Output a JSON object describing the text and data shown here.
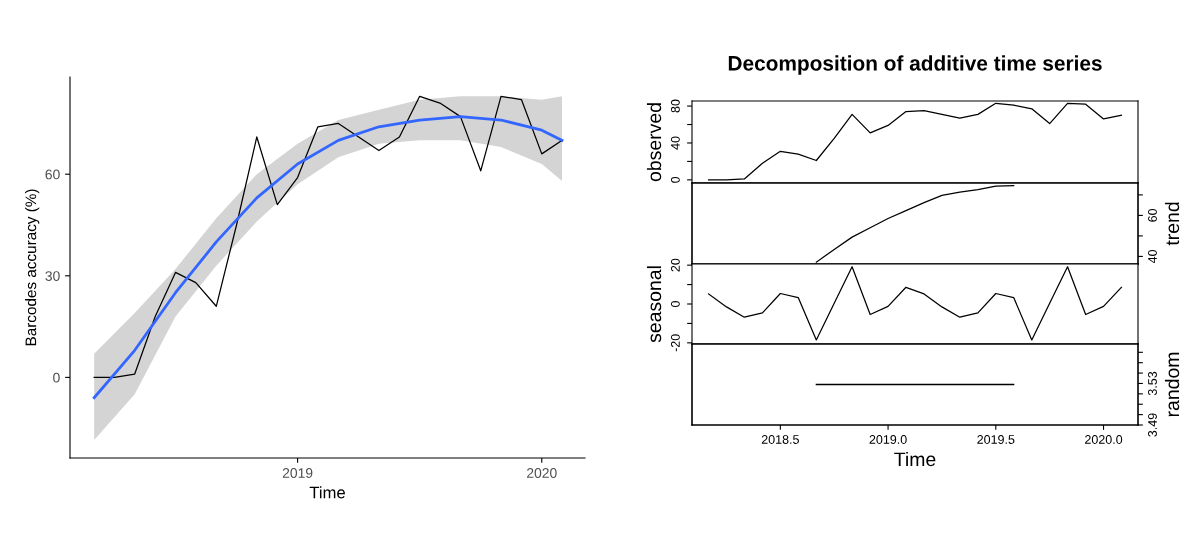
{
  "chart_data": [
    {
      "type": "line",
      "xlabel": "Time",
      "ylabel": "Barcodes accuracy (%)",
      "xlim": [
        2018.068,
        2020.177
      ],
      "ylim": [
        -23.8,
        88.7
      ],
      "xticks": [
        2019,
        2020
      ],
      "yticks": [
        0,
        30,
        60
      ],
      "grid": false,
      "series": [
        {
          "color": "#000000",
          "x": [
            2018.167,
            2018.25,
            2018.333,
            2018.417,
            2018.5,
            2018.583,
            2018.667,
            2018.75,
            2018.833,
            2018.917,
            2019.0,
            2019.083,
            2019.167,
            2019.25,
            2019.333,
            2019.417,
            2019.5,
            2019.583,
            2019.667,
            2019.75,
            2019.833,
            2019.917,
            2020.0,
            2020.083
          ],
          "values": [
            0,
            0,
            1,
            18,
            31,
            28,
            21,
            45,
            71,
            51,
            59,
            74,
            75,
            71,
            67,
            71,
            83,
            81,
            77,
            61,
            83,
            82,
            66,
            70
          ]
        },
        {
          "type": "line",
          "color": "#3366ff",
          "x": [
            2018.167,
            2018.333,
            2018.5,
            2018.667,
            2018.833,
            2019.0,
            2019.167,
            2019.333,
            2019.5,
            2019.667,
            2019.833,
            2020.0,
            2020.083
          ],
          "values": [
            -6,
            8,
            25,
            40,
            53,
            63,
            70,
            74,
            76,
            77,
            76,
            73,
            70
          ],
          "lower": [
            -18.5,
            -5,
            18,
            33,
            46,
            57,
            65,
            69,
            70,
            70,
            68,
            63,
            58
          ],
          "upper": [
            7,
            19,
            32,
            47,
            60,
            69,
            76,
            79,
            82,
            83,
            83,
            82,
            83
          ]
        }
      ]
    },
    {
      "type": "line",
      "title": "Decomposition of additive time series",
      "ylabel": "observed",
      "xlim": [
        2018.09,
        2020.16
      ],
      "ylim": [
        -3.4,
        85.5
      ],
      "yticks": [
        0,
        {
          "value": 20,
          "label": null
        },
        40,
        {
          "value": 60,
          "label": null
        },
        80
      ],
      "tick_labels": "y",
      "series": [
        {
          "color": "#000000",
          "x": [
            2018.167,
            2018.25,
            2018.333,
            2018.417,
            2018.5,
            2018.583,
            2018.667,
            2018.75,
            2018.833,
            2018.917,
            2019.0,
            2019.083,
            2019.167,
            2019.25,
            2019.333,
            2019.417,
            2019.5,
            2019.583,
            2019.667,
            2019.75,
            2019.833,
            2019.917,
            2020.0,
            2020.083
          ],
          "values": [
            0,
            0,
            1,
            18,
            31,
            28,
            21,
            45,
            71,
            51,
            59,
            74,
            75,
            71,
            67,
            71,
            83,
            81,
            77,
            61,
            83,
            82,
            66,
            70
          ]
        }
      ]
    },
    {
      "type": "line",
      "y2label": "trend",
      "xlim": [
        2018.09,
        2020.16
      ],
      "y2lim": [
        36.3,
        75.8
      ],
      "y2ticks": [
        40,
        {
          "value": 50,
          "label": null
        },
        60,
        {
          "value": 70,
          "label": null
        }
      ],
      "tick_labels": "y2",
      "series": [
        {
          "color": "#000000",
          "axis": "y2",
          "x": [
            2018.667,
            2018.75,
            2018.833,
            2018.917,
            2019.0,
            2019.083,
            2019.167,
            2019.25,
            2019.333,
            2019.417,
            2019.5,
            2019.583
          ],
          "values": [
            37.2,
            43.4,
            49.4,
            54,
            58.5,
            62.3,
            66.2,
            69.8,
            71.3,
            72.6,
            74.3,
            74.5
          ]
        }
      ]
    },
    {
      "type": "line",
      "ylabel": "seasonal",
      "xlim": [
        2018.09,
        2020.16
      ],
      "ylim": [
        -20.6,
        20.6
      ],
      "yticks": [
        -20,
        {
          "value": -10,
          "label": null
        },
        0,
        {
          "value": 10,
          "label": null
        },
        20
      ],
      "tick_labels": "y",
      "series": [
        {
          "color": "#000000",
          "x": [
            2018.167,
            2018.25,
            2018.333,
            2018.417,
            2018.5,
            2018.583,
            2018.667,
            2018.75,
            2018.833,
            2018.917,
            2019.0,
            2019.083,
            2019.167,
            2019.25,
            2019.333,
            2019.417,
            2019.5,
            2019.583,
            2019.667,
            2019.75,
            2019.833,
            2019.917,
            2020.0,
            2020.083
          ],
          "values": [
            5.2,
            -1.5,
            -6.8,
            -4.6,
            5.4,
            3.3,
            -18.5,
            0.4,
            19.2,
            -5.4,
            -1.2,
            8.6,
            5.2,
            -1.5,
            -6.8,
            -4.6,
            5.4,
            3.3,
            -18.5,
            0.4,
            19.2,
            -5.4,
            -1.2,
            8.6
          ]
        }
      ]
    },
    {
      "type": "line",
      "xlabel": "Time",
      "y2label": "random",
      "xlim": [
        2018.09,
        2020.16
      ],
      "xticks": [
        2018.5,
        {
          "value": 2019,
          "label": "2019.0"
        },
        2019.5,
        {
          "value": 2020,
          "label": "2020.0"
        }
      ],
      "y2lim": [
        3.49,
        3.568
      ],
      "y2ticks": [
        3.49,
        {
          "value": 3.5,
          "label": null
        },
        {
          "value": 3.51,
          "label": null
        },
        {
          "value": 3.52,
          "label": null
        },
        3.53,
        {
          "value": 3.54,
          "label": null
        },
        {
          "value": 3.55,
          "label": null
        },
        {
          "value": 3.56,
          "label": null
        }
      ],
      "series": [
        {
          "color": "#000000",
          "axis": "y2",
          "x": [
            2018.667,
            2018.75,
            2018.833,
            2018.917,
            2019.0,
            2019.083,
            2019.167,
            2019.25,
            2019.333,
            2019.417,
            2019.5,
            2019.583
          ],
          "values": [
            3.529,
            3.529,
            3.529,
            3.529,
            3.529,
            3.529,
            3.529,
            3.529,
            3.529,
            3.529,
            3.529,
            3.529
          ]
        }
      ]
    }
  ]
}
